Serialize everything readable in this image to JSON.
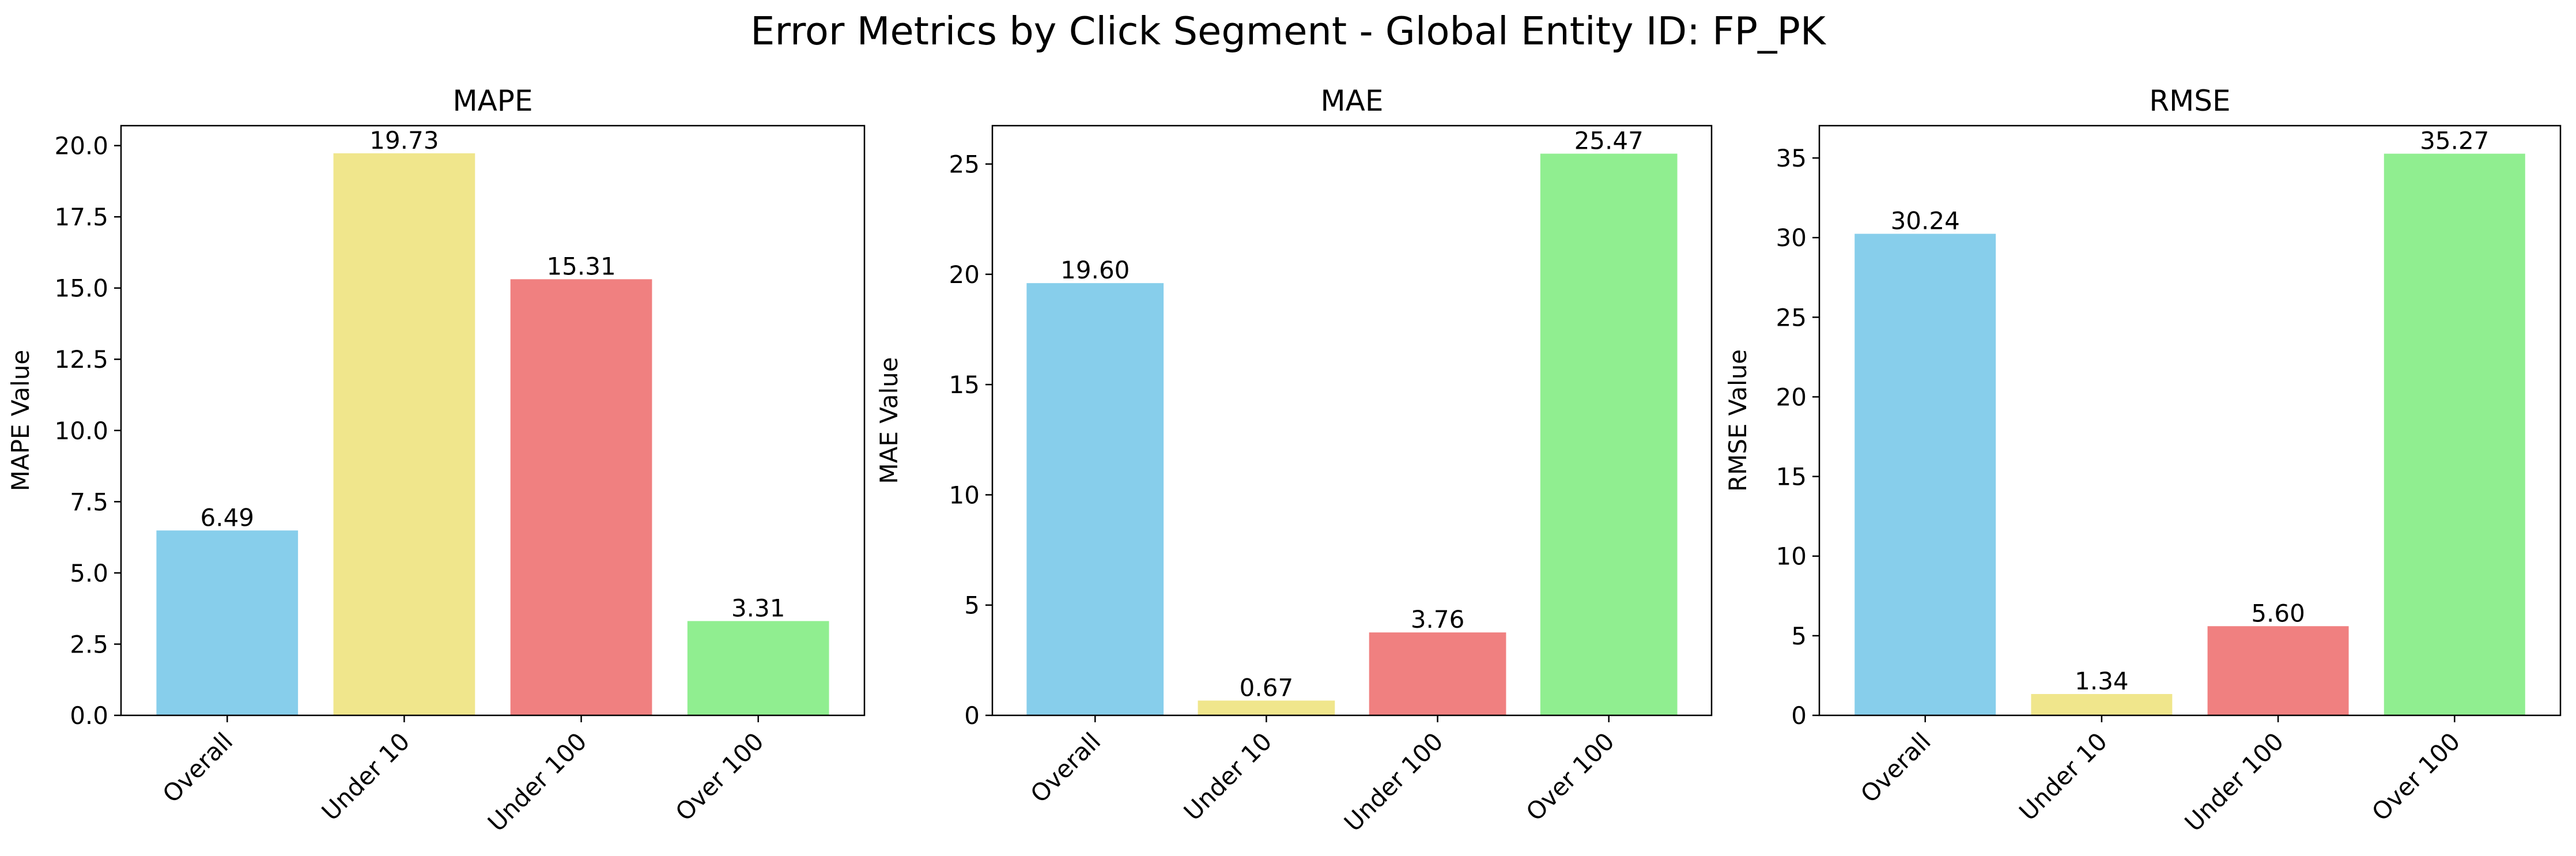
{
  "figure": {
    "suptitle": "Error Metrics by Click Segment - Global Entity ID: FP_PK"
  },
  "chart_data": [
    {
      "type": "bar",
      "title": "MAPE",
      "xlabel": "",
      "ylabel": "MAPE Value",
      "categories": [
        "Overall",
        "Under 10",
        "Under 100",
        "Over 100"
      ],
      "values": [
        6.49,
        19.73,
        15.31,
        3.31
      ],
      "value_labels": [
        "6.49",
        "19.73",
        "15.31",
        "3.31"
      ],
      "colors": [
        "#87ceeb",
        "#f0e68c",
        "#f08080",
        "#90ee90"
      ],
      "ylim": [
        0,
        20.7
      ],
      "yticks": [
        0,
        2.5,
        5,
        7.5,
        10,
        12.5,
        15,
        17.5,
        20
      ],
      "ytick_labels": [
        "0.0",
        "2.5",
        "5.0",
        "7.5",
        "10.0",
        "12.5",
        "15.0",
        "17.5",
        "20.0"
      ],
      "grid": false,
      "legend": "none"
    },
    {
      "type": "bar",
      "title": "MAE",
      "xlabel": "",
      "ylabel": "MAE Value",
      "categories": [
        "Overall",
        "Under 10",
        "Under 100",
        "Over 100"
      ],
      "values": [
        19.6,
        0.67,
        3.76,
        25.47
      ],
      "value_labels": [
        "19.60",
        "0.67",
        "3.76",
        "25.47"
      ],
      "colors": [
        "#87ceeb",
        "#f0e68c",
        "#f08080",
        "#90ee90"
      ],
      "ylim": [
        0,
        26.74
      ],
      "yticks": [
        0,
        5,
        10,
        15,
        20,
        25
      ],
      "ytick_labels": [
        "0",
        "5",
        "10",
        "15",
        "20",
        "25"
      ],
      "grid": false,
      "legend": "none"
    },
    {
      "type": "bar",
      "title": "RMSE",
      "xlabel": "",
      "ylabel": "RMSE Value",
      "categories": [
        "Overall",
        "Under 10",
        "Under 100",
        "Over 100"
      ],
      "values": [
        30.24,
        1.34,
        5.6,
        35.27
      ],
      "value_labels": [
        "30.24",
        "1.34",
        "5.60",
        "35.27"
      ],
      "colors": [
        "#87ceeb",
        "#f0e68c",
        "#f08080",
        "#90ee90"
      ],
      "ylim": [
        0,
        37.03
      ],
      "yticks": [
        0,
        5,
        10,
        15,
        20,
        25,
        30,
        35
      ],
      "ytick_labels": [
        "0",
        "5",
        "10",
        "15",
        "20",
        "25",
        "30",
        "35"
      ],
      "grid": false,
      "legend": "none"
    }
  ]
}
